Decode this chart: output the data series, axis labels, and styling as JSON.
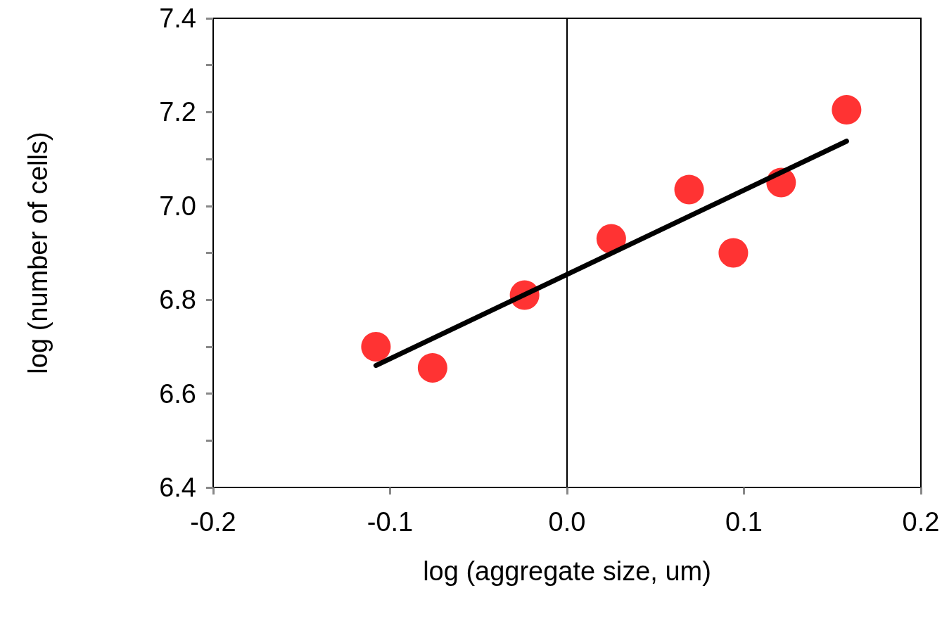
{
  "chart_data": {
    "type": "scatter",
    "xlabel": "log (aggregate size, um)",
    "ylabel": "log (number of cells)",
    "xlim": [
      -0.2,
      0.2
    ],
    "xticks": [
      -0.2,
      -0.1,
      {
        "value": 0,
        "label": "0.0"
      },
      0.1,
      0.2
    ],
    "ylim": [
      6.4,
      7.4
    ],
    "yticks": [
      6.4,
      {
        "value": 6.5,
        "label": null
      },
      6.6,
      {
        "value": 6.7,
        "label": null
      },
      6.8,
      {
        "value": 6.9,
        "label": null
      },
      {
        "value": 7.0,
        "label": "7.0"
      },
      {
        "value": 7.1,
        "label": null
      },
      7.2,
      {
        "value": 7.3,
        "label": null
      },
      7.4
    ],
    "grid": false,
    "ref_lines": [
      {
        "axis": "x",
        "value": 0,
        "label": null,
        "color": "#000000"
      }
    ],
    "series": [
      {
        "color": "#ff0000",
        "marker": "circle",
        "x": [
          -0.108,
          -0.076,
          -0.024,
          0.025,
          0.069,
          0.094,
          0.121,
          0.158
        ],
        "values": [
          6.7,
          6.655,
          6.81,
          6.93,
          7.035,
          6.9,
          7.05,
          7.205
        ]
      },
      {
        "type": "line",
        "color": "#000000",
        "marker": "none",
        "line_style": "solid",
        "x": [
          -0.108,
          0.158
        ],
        "values": [
          6.66,
          7.138
        ]
      }
    ]
  }
}
